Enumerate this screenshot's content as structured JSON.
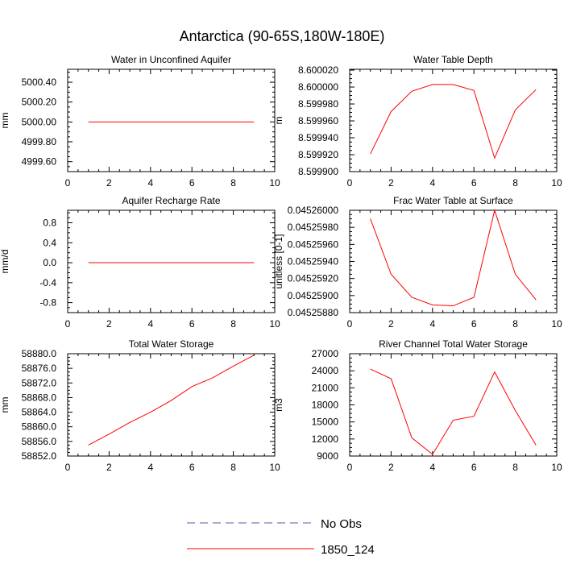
{
  "title": "Antarctica (90-65S,180W-180E)",
  "legend": [
    {
      "label": "No Obs",
      "color": "#5a5aa8",
      "dash": true
    },
    {
      "label": "1850_124",
      "color": "#ff0000",
      "dash": false
    }
  ],
  "chart_data": [
    {
      "type": "line",
      "title": "Water in Unconfined Aquifer",
      "ylabel": "mm",
      "xlim": [
        0,
        10
      ],
      "xticks": [
        0,
        2,
        4,
        6,
        8,
        10
      ],
      "ylim": [
        4999.5,
        5000.53
      ],
      "yticks": [
        4999.6,
        4999.8,
        5000.0,
        5000.2,
        5000.4
      ],
      "ytick_labels": [
        "4999.60",
        "4999.80",
        "5000.00",
        "5000.20",
        "5000.40"
      ],
      "series": [
        {
          "name": "1850_124",
          "color": "#ff0000",
          "x": [
            1,
            2,
            3,
            4,
            5,
            6,
            7,
            8,
            9
          ],
          "y": [
            5000.0,
            5000.0,
            5000.0,
            5000.0,
            5000.0,
            5000.0,
            5000.0,
            5000.0,
            5000.0
          ]
        }
      ]
    },
    {
      "type": "line",
      "title": "Water Table Depth",
      "ylabel": "m",
      "xlim": [
        0,
        10
      ],
      "xticks": [
        0,
        2,
        4,
        6,
        8,
        10
      ],
      "ylim": [
        8.5999,
        8.600021
      ],
      "yticks": [
        8.5999,
        8.59992,
        8.59994,
        8.59996,
        8.59998,
        8.6,
        8.60002
      ],
      "ytick_labels": [
        "8.599900",
        "8.599920",
        "8.599940",
        "8.599960",
        "8.599980",
        "8.600000",
        "8.600020"
      ],
      "series": [
        {
          "name": "1850_124",
          "color": "#ff0000",
          "x": [
            1,
            2,
            3,
            4,
            5,
            6,
            7,
            8,
            9
          ],
          "y": [
            8.599921,
            8.599971,
            8.599995,
            8.600003,
            8.600003,
            8.599996,
            8.599916,
            8.599973,
            8.599997
          ]
        }
      ]
    },
    {
      "type": "line",
      "title": "Aquifer Recharge Rate",
      "ylabel": "mm/d",
      "xlim": [
        0,
        10
      ],
      "xticks": [
        0,
        2,
        4,
        6,
        8,
        10
      ],
      "ylim": [
        -1.0,
        1.05
      ],
      "yticks": [
        -0.8,
        -0.4,
        0.0,
        0.4,
        0.8
      ],
      "ytick_labels": [
        "-0.8",
        "-0.4",
        "0.0",
        "0.4",
        "0.8"
      ],
      "series": [
        {
          "name": "1850_124",
          "color": "#ff0000",
          "x": [
            1,
            2,
            3,
            4,
            5,
            6,
            7,
            8,
            9
          ],
          "y": [
            0,
            0,
            0,
            0,
            0,
            0,
            0,
            0,
            0
          ]
        }
      ]
    },
    {
      "type": "line",
      "title": "Frac Water Table at Surface",
      "ylabel": "unitless [0-1]",
      "xlim": [
        0,
        10
      ],
      "xticks": [
        0,
        2,
        4,
        6,
        8,
        10
      ],
      "ylim": [
        0.0452588,
        0.04526
      ],
      "yticks": [
        0.0452588,
        0.045259,
        0.0452592,
        0.0452594,
        0.0452596,
        0.0452598,
        0.04526
      ],
      "ytick_labels": [
        "0.04525880",
        "0.04525900",
        "0.04525920",
        "0.04525940",
        "0.04525960",
        "0.04525980",
        "0.04526000"
      ],
      "series": [
        {
          "name": "1850_124",
          "color": "#ff0000",
          "x": [
            1,
            2,
            3,
            4,
            5,
            6,
            7,
            8,
            9
          ],
          "y": [
            0.0452599,
            0.04525925,
            0.04525898,
            0.04525889,
            0.04525888,
            0.04525898,
            0.04526,
            0.04525925,
            0.04525895
          ]
        }
      ]
    },
    {
      "type": "line",
      "title": "Total Water Storage",
      "ylabel": "mm",
      "xlim": [
        0,
        10
      ],
      "xticks": [
        0,
        2,
        4,
        6,
        8,
        10
      ],
      "ylim": [
        58852.0,
        58880.0
      ],
      "yticks": [
        58852,
        58856,
        58860,
        58864,
        58868,
        58872,
        58876,
        58880
      ],
      "ytick_labels": [
        "58852.0",
        "58856.0",
        "58860.0",
        "58864.0",
        "58868.0",
        "58872.0",
        "58876.0",
        "58880.0"
      ],
      "series": [
        {
          "name": "1850_124",
          "color": "#ff0000",
          "x": [
            1,
            2,
            3,
            4,
            5,
            6,
            7,
            8,
            9
          ],
          "y": [
            58855.0,
            58858.0,
            58861.2,
            58864.0,
            58867.2,
            58871.0,
            58873.4,
            58876.6,
            58879.6
          ]
        }
      ]
    },
    {
      "type": "line",
      "title": "River Channel Total Water Storage",
      "ylabel": "m3",
      "xlim": [
        0,
        10
      ],
      "xticks": [
        0,
        2,
        4,
        6,
        8,
        10
      ],
      "ylim": [
        9000,
        27000
      ],
      "yticks": [
        9000,
        12000,
        15000,
        18000,
        21000,
        24000,
        27000
      ],
      "ytick_labels": [
        "9000",
        "12000",
        "15000",
        "18000",
        "21000",
        "24000",
        "27000"
      ],
      "series": [
        {
          "name": "1850_124",
          "color": "#ff0000",
          "x": [
            1,
            2,
            3,
            4,
            5,
            6,
            7,
            8,
            9
          ],
          "y": [
            24300,
            22600,
            12200,
            9300,
            15300,
            16000,
            23800,
            17000,
            10900
          ]
        }
      ]
    }
  ]
}
